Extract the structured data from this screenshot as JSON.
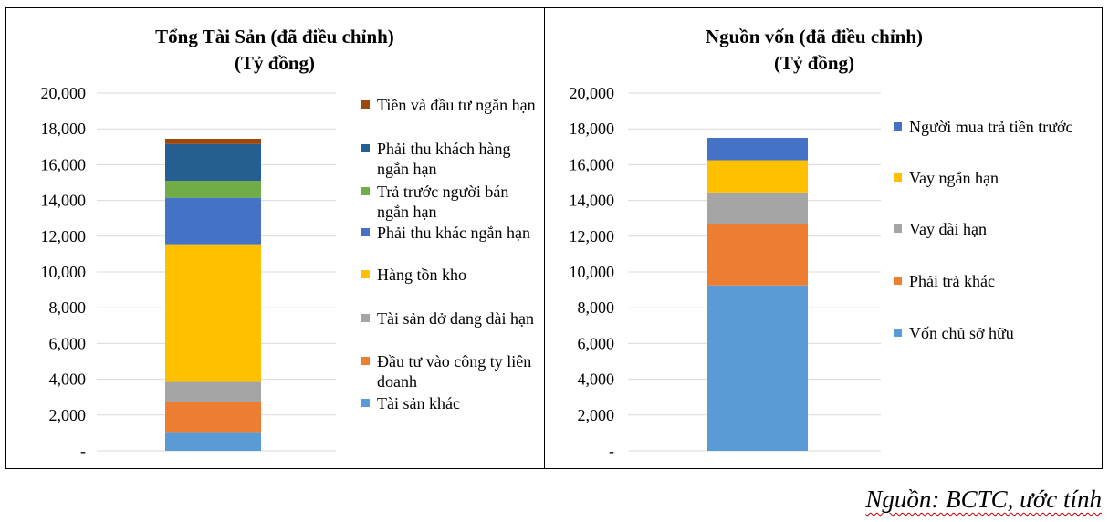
{
  "chart_data": [
    {
      "type": "bar",
      "stacked": true,
      "title": "Tổng Tài Sản (đã điều chỉnh)",
      "subtitle": "(Tỷ đồng)",
      "yticks": [
        "-",
        "2,000",
        "4,000",
        "6,000",
        "8,000",
        "10,000",
        "12,000",
        "14,000",
        "16,000",
        "18,000",
        "20,000"
      ],
      "ylim": [
        0,
        20000
      ],
      "grid": true,
      "legend_position": "right",
      "categories": [
        ""
      ],
      "series": [
        {
          "name": "Tài sản khác",
          "values": [
            1050
          ],
          "color": "#5B9BD5"
        },
        {
          "name": "Đầu tư vào công ty liên doanh",
          "values": [
            1700
          ],
          "color": "#ED7D31"
        },
        {
          "name": "Tài sản dở dang dài hạn",
          "values": [
            1100
          ],
          "color": "#A5A5A5"
        },
        {
          "name": "Hàng tồn kho",
          "values": [
            7700
          ],
          "color": "#FFC000"
        },
        {
          "name": "Phải thu khác ngắn hạn",
          "values": [
            2600
          ],
          "color": "#4472C4"
        },
        {
          "name": "Trả trước người bán ngắn hạn",
          "values": [
            950
          ],
          "color": "#70AD47"
        },
        {
          "name": "Phải thu khách hàng ngắn hạn",
          "values": [
            2050
          ],
          "color": "#255E91"
        },
        {
          "name": "Tiền và đầu tư ngắn hạn",
          "values": [
            300
          ],
          "color": "#9E480E"
        }
      ]
    },
    {
      "type": "bar",
      "stacked": true,
      "title": "Nguồn vốn (đã điều chỉnh)",
      "subtitle": "(Tỷ đồng)",
      "yticks": [
        "-",
        "2,000",
        "4,000",
        "6,000",
        "8,000",
        "10,000",
        "12,000",
        "14,000",
        "16,000",
        "18,000",
        "20,000"
      ],
      "ylim": [
        0,
        20000
      ],
      "grid": true,
      "legend_position": "right",
      "categories": [
        ""
      ],
      "series": [
        {
          "name": "Vốn chủ sở hữu",
          "values": [
            9250
          ],
          "color": "#5B9BD5"
        },
        {
          "name": "Phải trả khác",
          "values": [
            3450
          ],
          "color": "#ED7D31"
        },
        {
          "name": "Vay dài hạn",
          "values": [
            1750
          ],
          "color": "#A5A5A5"
        },
        {
          "name": "Vay ngắn hạn",
          "values": [
            1800
          ],
          "color": "#FFC000"
        },
        {
          "name": "Người mua trả tiền trước",
          "values": [
            1250
          ],
          "color": "#4472C4"
        }
      ]
    }
  ],
  "source": "Nguồn: BCTC, ước tính"
}
